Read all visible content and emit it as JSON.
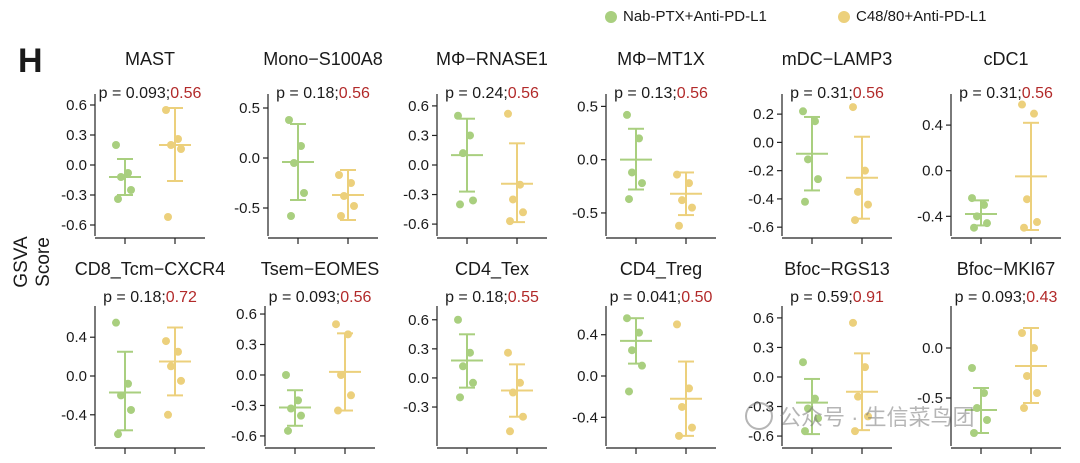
{
  "panel_label": "H",
  "y_axis_label": "GSVA Score",
  "legend": [
    {
      "label": "Nab-PTX+Anti-PD-L1",
      "color": "#a9cf7f"
    },
    {
      "label": "C48/80+Anti-PD-L1",
      "color": "#ecd07c"
    }
  ],
  "colors": {
    "group1": "#a9cf7f",
    "group2": "#ecd07c",
    "second_p": "#b22a2a",
    "text": "#1a1a1a"
  },
  "watermark": "公众号 · 生信菜鸟团",
  "chart_data": [
    {
      "type": "scatter",
      "title": "MAST",
      "p_first": "p = 0.093;",
      "p_second": "0.56",
      "ylim": [
        -0.65,
        0.65
      ],
      "ticks": [
        -0.6,
        -0.3,
        0.0,
        0.3,
        0.6
      ],
      "tick_labels": [
        "-0.6",
        "-0.3",
        "0.0",
        "0.3",
        "0.6"
      ],
      "groups": [
        {
          "mean": -0.12,
          "lo": -0.3,
          "hi": 0.06,
          "points": [
            0.2,
            -0.08,
            -0.12,
            -0.25,
            -0.34
          ]
        },
        {
          "mean": 0.2,
          "lo": -0.16,
          "hi": 0.57,
          "points": [
            0.55,
            0.26,
            0.2,
            0.16,
            -0.52
          ]
        }
      ]
    },
    {
      "type": "scatter",
      "title": "Mono−S100A8",
      "p_first": "p = 0.18;",
      "p_second": "0.56",
      "ylim": [
        -0.72,
        0.58
      ],
      "ticks": [
        -0.5,
        0.0,
        0.5
      ],
      "tick_labels": [
        "-0.5",
        "0.0",
        "0.5"
      ],
      "groups": [
        {
          "mean": -0.04,
          "lo": -0.42,
          "hi": 0.34,
          "points": [
            0.38,
            0.12,
            -0.05,
            -0.35,
            -0.58
          ]
        },
        {
          "mean": -0.37,
          "lo": -0.62,
          "hi": -0.12,
          "points": [
            -0.17,
            -0.25,
            -0.38,
            -0.48,
            -0.58
          ]
        }
      ]
    },
    {
      "type": "scatter",
      "title": "MΦ−RNASE1",
      "p_first": "p = 0.24;",
      "p_second": "0.56",
      "ylim": [
        -0.66,
        0.66
      ],
      "ticks": [
        -0.6,
        -0.3,
        0.0,
        0.3,
        0.6
      ],
      "tick_labels": [
        "-0.6",
        "-0.3",
        "0.0",
        "0.3",
        "0.6"
      ],
      "groups": [
        {
          "mean": 0.1,
          "lo": -0.27,
          "hi": 0.47,
          "points": [
            0.5,
            0.3,
            0.12,
            -0.36,
            -0.4
          ]
        },
        {
          "mean": -0.19,
          "lo": -0.58,
          "hi": 0.22,
          "points": [
            0.52,
            -0.2,
            -0.35,
            -0.48,
            -0.57
          ]
        }
      ]
    },
    {
      "type": "scatter",
      "title": "MΦ−MT1X",
      "p_first": "p = 0.13;",
      "p_second": "0.56",
      "ylim": [
        -0.66,
        0.56
      ],
      "ticks": [
        -0.5,
        0.0,
        0.5
      ],
      "tick_labels": [
        "-0.5",
        "0.0",
        "0.5"
      ],
      "groups": [
        {
          "mean": 0.0,
          "lo": -0.28,
          "hi": 0.29,
          "points": [
            0.42,
            0.2,
            -0.12,
            -0.22,
            -0.37
          ]
        },
        {
          "mean": -0.32,
          "lo": -0.52,
          "hi": -0.12,
          "points": [
            -0.14,
            -0.22,
            -0.38,
            -0.45,
            -0.62
          ]
        }
      ]
    },
    {
      "type": "scatter",
      "title": "mDC−LAMP3",
      "p_first": "p = 0.31;",
      "p_second": "0.56",
      "ylim": [
        -0.62,
        0.3
      ],
      "ticks": [
        -0.6,
        -0.4,
        -0.2,
        0.0,
        0.2
      ],
      "tick_labels": [
        "-0.6",
        "-0.4",
        "-0.2",
        "0.0",
        "0.2"
      ],
      "groups": [
        {
          "mean": -0.08,
          "lo": -0.34,
          "hi": 0.18,
          "points": [
            0.22,
            0.15,
            -0.12,
            -0.26,
            -0.42
          ]
        },
        {
          "mean": -0.25,
          "lo": -0.54,
          "hi": 0.04,
          "points": [
            0.25,
            -0.2,
            -0.35,
            -0.44,
            -0.55
          ]
        }
      ]
    },
    {
      "type": "scatter",
      "title": "cDC1",
      "p_first": "p = 0.31;",
      "p_second": "0.56",
      "ylim": [
        -0.52,
        0.62
      ],
      "ticks": [
        -0.4,
        0.0,
        0.4
      ],
      "tick_labels": [
        "-0.4",
        "0.0",
        "0.4"
      ],
      "groups": [
        {
          "mean": -0.38,
          "lo": -0.48,
          "hi": -0.26,
          "points": [
            -0.24,
            -0.3,
            -0.4,
            -0.46,
            -0.5
          ]
        },
        {
          "mean": -0.05,
          "lo": -0.52,
          "hi": 0.42,
          "points": [
            0.58,
            0.5,
            -0.25,
            -0.45,
            -0.5
          ]
        }
      ]
    },
    {
      "type": "scatter",
      "title": "CD8_Tcm−CXCR4",
      "p_first": "p = 0.18;",
      "p_second": "0.72",
      "ylim": [
        -0.66,
        0.66
      ],
      "ticks": [
        -0.4,
        0.0,
        0.4
      ],
      "tick_labels": [
        "-0.4",
        "0.0",
        "0.4"
      ],
      "groups": [
        {
          "mean": -0.17,
          "lo": -0.56,
          "hi": 0.25,
          "points": [
            0.55,
            -0.08,
            -0.2,
            -0.35,
            -0.6
          ]
        },
        {
          "mean": 0.15,
          "lo": -0.2,
          "hi": 0.5,
          "points": [
            0.36,
            0.25,
            0.1,
            -0.05,
            -0.4
          ]
        }
      ]
    },
    {
      "type": "scatter",
      "title": "Tsem−EOMES",
      "p_first": "p = 0.093;",
      "p_second": "0.56",
      "ylim": [
        -0.64,
        0.62
      ],
      "ticks": [
        -0.6,
        -0.3,
        0.0,
        0.3,
        0.6
      ],
      "tick_labels": [
        "-0.6",
        "-0.3",
        "0.0",
        "0.3",
        "0.6"
      ],
      "groups": [
        {
          "mean": -0.32,
          "lo": -0.5,
          "hi": -0.15,
          "points": [
            0.0,
            -0.25,
            -0.33,
            -0.4,
            -0.55
          ]
        },
        {
          "mean": 0.03,
          "lo": -0.35,
          "hi": 0.41,
          "points": [
            0.5,
            0.4,
            0.0,
            -0.2,
            -0.35
          ]
        }
      ]
    },
    {
      "type": "scatter",
      "title": "CD4_Tex",
      "p_first": "p = 0.18;",
      "p_second": "0.55",
      "ylim": [
        -0.64,
        0.68
      ],
      "ticks": [
        -0.3,
        0.0,
        0.3,
        0.6
      ],
      "tick_labels": [
        "-0.3",
        "0.0",
        "0.3",
        "0.6"
      ],
      "groups": [
        {
          "mean": 0.18,
          "lo": -0.1,
          "hi": 0.45,
          "points": [
            0.6,
            0.26,
            0.12,
            -0.05,
            -0.2
          ]
        },
        {
          "mean": -0.13,
          "lo": -0.4,
          "hi": 0.14,
          "points": [
            0.26,
            -0.05,
            -0.15,
            -0.4,
            -0.55
          ]
        }
      ]
    },
    {
      "type": "scatter",
      "title": "CD4_Treg",
      "p_first": "p = 0.041;",
      "p_second": "0.50",
      "ylim": [
        -0.62,
        0.62
      ],
      "ticks": [
        -0.4,
        0.0,
        0.4
      ],
      "tick_labels": [
        "-0.4",
        "0.0",
        "0.4"
      ],
      "groups": [
        {
          "mean": 0.34,
          "lo": 0.12,
          "hi": 0.56,
          "points": [
            0.56,
            0.42,
            0.25,
            0.1,
            -0.15
          ]
        },
        {
          "mean": -0.22,
          "lo": -0.58,
          "hi": 0.14,
          "points": [
            0.5,
            -0.12,
            -0.3,
            -0.5,
            -0.58
          ]
        }
      ]
    },
    {
      "type": "scatter",
      "title": "Bfoc−RGS13",
      "p_first": "p = 0.59;",
      "p_second": "0.91",
      "ylim": [
        -0.64,
        0.66
      ],
      "ticks": [
        -0.6,
        -0.3,
        0.0,
        0.3,
        0.6
      ],
      "tick_labels": [
        "-0.6",
        "-0.3",
        "0.0",
        "0.3",
        "0.6"
      ],
      "groups": [
        {
          "mean": -0.26,
          "lo": -0.58,
          "hi": -0.02,
          "points": [
            0.15,
            -0.22,
            -0.32,
            -0.42,
            -0.55
          ]
        },
        {
          "mean": -0.15,
          "lo": -0.54,
          "hi": 0.24,
          "points": [
            0.55,
            0.1,
            -0.2,
            -0.4,
            -0.55
          ]
        }
      ]
    },
    {
      "type": "scatter",
      "title": "Bfoc−MKI67",
      "p_first": "p = 0.093;",
      "p_second": "0.43",
      "ylim": [
        -0.92,
        0.36
      ],
      "ticks": [
        -0.5,
        0.0
      ],
      "tick_labels": [
        "-0.5",
        "0.0"
      ],
      "groups": [
        {
          "mean": -0.62,
          "lo": -0.85,
          "hi": -0.4,
          "points": [
            -0.2,
            -0.45,
            -0.6,
            -0.72,
            -0.85
          ]
        },
        {
          "mean": -0.18,
          "lo": -0.55,
          "hi": 0.2,
          "points": [
            0.15,
            0.0,
            -0.28,
            -0.45,
            -0.6
          ]
        }
      ]
    }
  ]
}
